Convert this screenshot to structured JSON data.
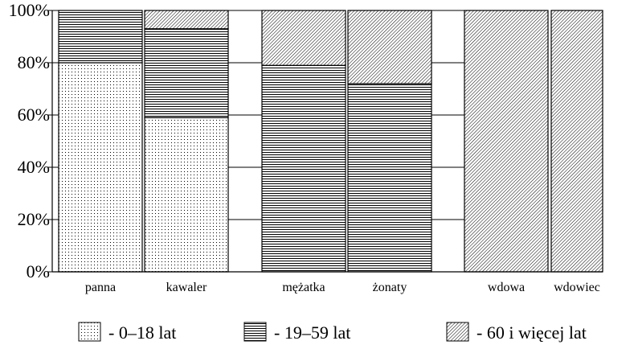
{
  "chart_data": {
    "type": "bar",
    "stacked": true,
    "percent": true,
    "categories": [
      "panna",
      "kawaler",
      "mężatka",
      "żonaty",
      "wdowa",
      "wdowiec"
    ],
    "series": [
      {
        "name": "- 0–18 lat",
        "pattern": "dots",
        "values": [
          80,
          59,
          0,
          0,
          0,
          0
        ]
      },
      {
        "name": "- 19–59 lat",
        "pattern": "horizontal-lines",
        "values": [
          20,
          34,
          79,
          72,
          0,
          0
        ]
      },
      {
        "name": "- 60 i więcej lat",
        "pattern": "diagonal-hatch",
        "values": [
          0,
          7,
          21,
          28,
          100,
          100
        ]
      }
    ],
    "yticks": [
      "0%",
      "20%",
      "40%",
      "60%",
      "80%",
      "100%"
    ],
    "ylim": [
      0,
      100
    ],
    "grid": true,
    "legend": "bottom",
    "colors": {
      "ink": "#000000",
      "background": "#ffffff"
    }
  }
}
